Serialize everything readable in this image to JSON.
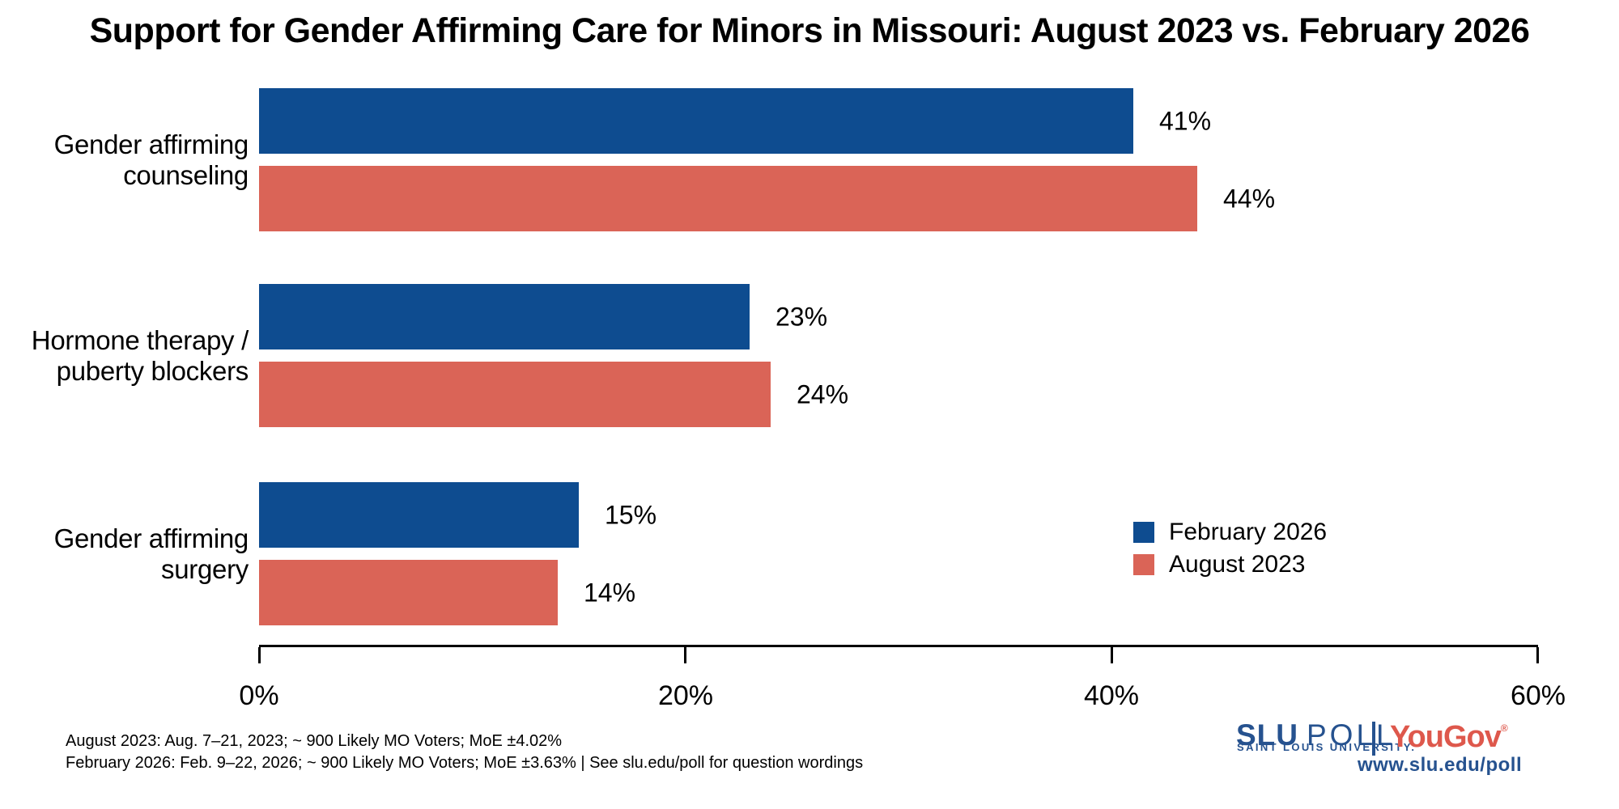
{
  "title": "Support for Gender Affirming Care for Minors in Missouri: August 2023 vs. February 2026",
  "colors": {
    "feb2026_blue": "#0E4C90",
    "aug2023_red": "#DA6457",
    "logo_blue": "#26528F",
    "yougov_red": "#DE584C",
    "axis_black": "#000000"
  },
  "chart_data": {
    "type": "bar",
    "orientation": "horizontal",
    "title": "Support for Gender Affirming Care for Minors in Missouri: August 2023 vs. February 2026",
    "categories": [
      "Gender affirming counseling",
      "Hormone therapy / puberty blockers",
      "Gender affirming surgery"
    ],
    "category_lines": [
      [
        "Gender affirming",
        "counseling"
      ],
      [
        "Hormone therapy /",
        "puberty blockers"
      ],
      [
        "Gender affirming",
        "surgery"
      ]
    ],
    "series": [
      {
        "name": "February 2026",
        "color": "#0E4C90",
        "values": [
          41,
          23,
          15
        ],
        "labels": [
          "41%",
          "23%",
          "15%"
        ]
      },
      {
        "name": "August 2023",
        "color": "#DA6457",
        "values": [
          44,
          24,
          14
        ],
        "labels": [
          "44%",
          "24%",
          "14%"
        ]
      }
    ],
    "x_axis": {
      "min": 0,
      "max": 60,
      "tick_values": [
        0,
        20,
        40,
        60
      ],
      "tick_labels": [
        "0%",
        "20%",
        "40%",
        "60%"
      ]
    },
    "legend": [
      {
        "label": "February 2026",
        "color": "#0E4C90"
      },
      {
        "label": "August 2023",
        "color": "#DA6457"
      }
    ],
    "legend_position": "right-middle",
    "grid": false
  },
  "footer": {
    "line1": "August 2023: Aug. 7–21, 2023; ~ 900 Likely MO Voters; MoE ±4.02%",
    "line2": "February 2026: Feb. 9–22, 2026; ~ 900 Likely MO Voters; MoE ±3.63%  |  See slu.edu/poll for question wordings"
  },
  "branding": {
    "slu": "SLU",
    "poll": "POLL",
    "subtitle": "SAINT LOUIS UNIVERSITY.",
    "yougov": "YouGov",
    "registered": "®",
    "url": "www.slu.edu/poll"
  }
}
